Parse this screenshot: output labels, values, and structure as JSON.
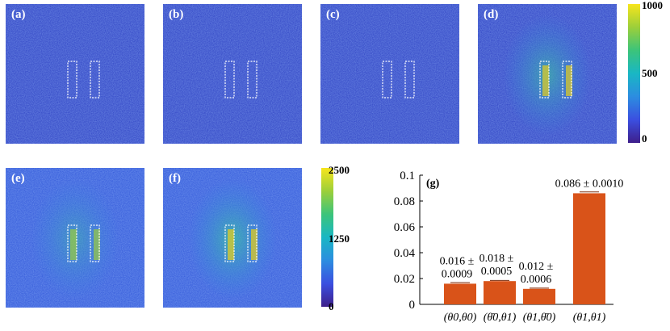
{
  "panels": [
    {
      "label": "(a)",
      "intensity": 0.05,
      "range": 1000
    },
    {
      "label": "(b)",
      "intensity": 0.06,
      "range": 1000
    },
    {
      "label": "(c)",
      "intensity": 0.06,
      "range": 1000
    },
    {
      "label": "(d)",
      "intensity": 0.42,
      "range": 1000
    },
    {
      "label": "(e)",
      "intensity": 0.3,
      "range": 2500
    },
    {
      "label": "(f)",
      "intensity": 0.48,
      "range": 2500
    }
  ],
  "colorbars": [
    {
      "ticks": [
        "1000",
        "500",
        "0"
      ]
    },
    {
      "ticks": [
        "2500",
        "1250",
        "0"
      ]
    }
  ],
  "colors": {
    "background_blue": "#2d3fbf",
    "bar": "#d95319",
    "colormap": [
      "#3e1f8a",
      "#3b4fe0",
      "#2c8de0",
      "#19b7c4",
      "#3cc47a",
      "#9ccf3a",
      "#f7e51c"
    ]
  },
  "chart_data": {
    "type": "bar",
    "label": "(g)",
    "categories": [
      "(θ0,θ0)",
      "(θ̄0,θ1)",
      "(θ1,θ̄0)",
      "(θ1,θ1)"
    ],
    "values": [
      0.016,
      0.018,
      0.012,
      0.086
    ],
    "errors": [
      0.0009,
      0.0005,
      0.0006,
      0.001
    ],
    "bar_labels": [
      {
        "line1": "0.016 ±",
        "line2": "0.0009"
      },
      {
        "line1": "0.018 ±",
        "line2": "0.0005"
      },
      {
        "line1": "0.012 ±",
        "line2": "0.0006"
      },
      {
        "line1": "0.086 ± 0.0010",
        "line2": ""
      }
    ],
    "yticks": [
      "0",
      "0.02",
      "0.04",
      "0.06",
      "0.08",
      "0.1"
    ],
    "ylim": [
      0,
      0.1
    ],
    "grid": false
  }
}
